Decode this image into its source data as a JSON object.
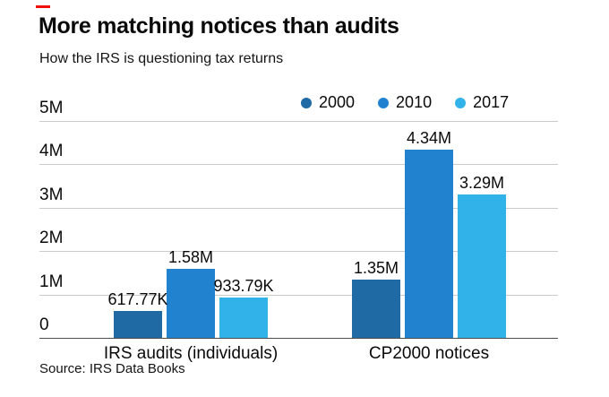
{
  "header": {
    "accent_color": "#ee0f0f",
    "title": "More matching notices than audits",
    "subtitle": "How the IRS is questioning tax returns"
  },
  "footer": {
    "source": "Source: IRS Data Books"
  },
  "chart_data": {
    "type": "bar",
    "title": "More matching notices than audits",
    "subtitle": "How the IRS is questioning tax returns",
    "categories": [
      "IRS audits (individuals)",
      "CP2000 notices"
    ],
    "series": [
      {
        "name": "2000",
        "color": "#1f6aa5",
        "values": [
          617770,
          1350000
        ],
        "value_labels": [
          "617.77K",
          "1.35M"
        ]
      },
      {
        "name": "2010",
        "color": "#2183cf",
        "values": [
          1580000,
          4340000
        ],
        "value_labels": [
          "1.58M",
          "4.34M"
        ]
      },
      {
        "name": "2017",
        "color": "#31b3e9",
        "values": [
          933790,
          3290000
        ],
        "value_labels": [
          "933.79K",
          "3.29M"
        ]
      }
    ],
    "ylim": [
      0,
      5000000
    ],
    "yticks": [
      {
        "value": 0,
        "label": "0"
      },
      {
        "value": 1000000,
        "label": "1M"
      },
      {
        "value": 2000000,
        "label": "2M"
      },
      {
        "value": 3000000,
        "label": "3M"
      },
      {
        "value": 4000000,
        "label": "4M"
      },
      {
        "value": 5000000,
        "label": "5M"
      }
    ],
    "legend": [
      "2000",
      "2010",
      "2017"
    ],
    "legend_position": "top-right",
    "grid": true,
    "gridline_color": "#cbcbcb",
    "baseline_color": "#4d4d4d",
    "source": "Source: IRS Data Books"
  }
}
